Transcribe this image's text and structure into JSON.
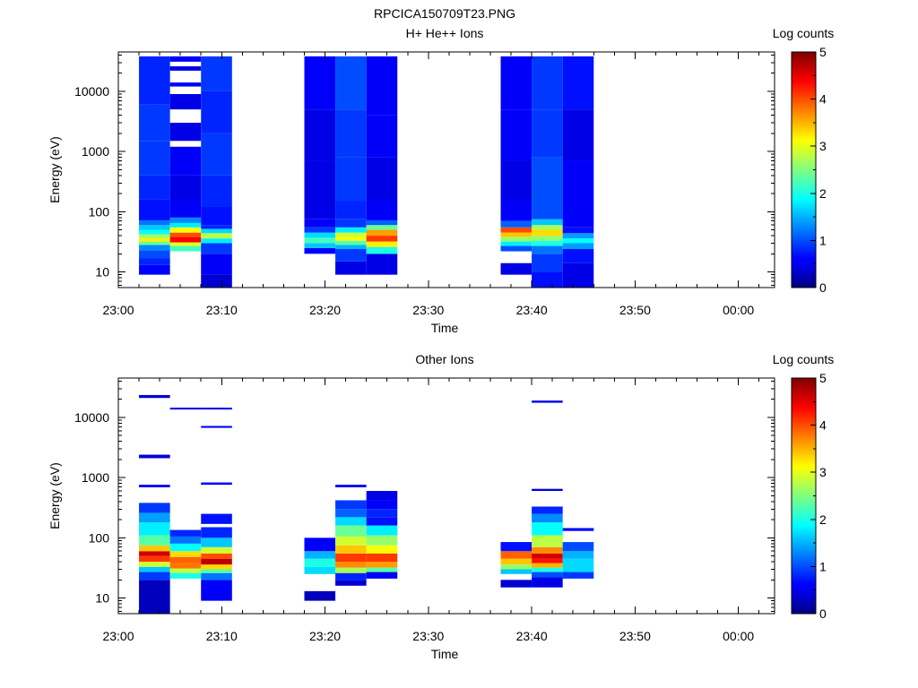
{
  "figure": {
    "title": "RPCICA150709T23.PNG"
  },
  "chart_data": [
    {
      "type": "heatmap",
      "title": "H+ He++ Ions",
      "xlabel": "Time",
      "ylabel": "Energy (eV)",
      "y_scale": "log",
      "ylim": [
        5.5,
        45000
      ],
      "x_tick_labels": [
        "23:00",
        "23:10",
        "23:20",
        "23:30",
        "23:40",
        "23:50",
        "00:00"
      ],
      "y_tick_labels": [
        "10",
        "100",
        "1000",
        "10000"
      ],
      "colorbar": {
        "label": "Log counts",
        "range": [
          0,
          5
        ],
        "tick_labels": [
          "0",
          "1",
          "2",
          "3",
          "4",
          "5"
        ]
      },
      "columns": [
        {
          "start": "23:02",
          "end": "23:05",
          "cells": [
            [
              9,
              13,
              0.6
            ],
            [
              13,
              17,
              0.8
            ],
            [
              17,
              23,
              1.0
            ],
            [
              23,
              28,
              1.3
            ],
            [
              28,
              32,
              2.4
            ],
            [
              32,
              36,
              3.2
            ],
            [
              36,
              42,
              2.7
            ],
            [
              42,
              50,
              1.9
            ],
            [
              50,
              60,
              1.6
            ],
            [
              60,
              72,
              1.2
            ],
            [
              72,
              160,
              0.7
            ],
            [
              160,
              400,
              0.8
            ],
            [
              400,
              1500,
              0.9
            ],
            [
              1500,
              6000,
              0.9
            ],
            [
              6000,
              38000,
              0.8
            ]
          ]
        },
        {
          "start": "23:05",
          "end": "23:08",
          "cells": [
            [
              22,
              27,
              2.2
            ],
            [
              27,
              31,
              3.0
            ],
            [
              31,
              38,
              4.4
            ],
            [
              38,
              45,
              4.0
            ],
            [
              45,
              55,
              3.1
            ],
            [
              55,
              65,
              1.8
            ],
            [
              65,
              80,
              1.3
            ],
            [
              80,
              150,
              0.6
            ],
            [
              150,
              400,
              0.5
            ],
            [
              400,
              1200,
              0.6
            ],
            [
              1500,
              3000,
              0.5
            ],
            [
              5000,
              9000,
              0.5
            ],
            [
              12000,
              14000,
              0.6
            ],
            [
              22000,
              26000,
              0.5
            ],
            [
              31000,
              38000,
              0.6
            ]
          ]
        },
        {
          "start": "23:08",
          "end": "23:11",
          "cells": [
            [
              5.5,
              9,
              0.4
            ],
            [
              9,
              20,
              0.6
            ],
            [
              20,
              30,
              0.9
            ],
            [
              30,
              36,
              1.8
            ],
            [
              36,
              44,
              2.8
            ],
            [
              44,
              52,
              1.7
            ],
            [
              52,
              60,
              0.8
            ],
            [
              60,
              120,
              0.7
            ],
            [
              120,
              400,
              0.8
            ],
            [
              400,
              2000,
              0.9
            ],
            [
              2000,
              10000,
              0.8
            ],
            [
              10000,
              38000,
              0.9
            ]
          ]
        },
        {
          "start": "23:18",
          "end": "23:21",
          "cells": [
            [
              20,
              25,
              0.6
            ],
            [
              25,
              30,
              1.6
            ],
            [
              30,
              37,
              2.2
            ],
            [
              37,
              45,
              1.7
            ],
            [
              45,
              55,
              0.9
            ],
            [
              55,
              75,
              0.6
            ],
            [
              75,
              150,
              0.5
            ],
            [
              150,
              700,
              0.5
            ],
            [
              700,
              5000,
              0.5
            ],
            [
              5000,
              38000,
              0.6
            ]
          ]
        },
        {
          "start": "23:21",
          "end": "23:24",
          "cells": [
            [
              9,
              15,
              0.5
            ],
            [
              15,
              24,
              0.9
            ],
            [
              24,
              28,
              1.5
            ],
            [
              28,
              33,
              2.3
            ],
            [
              33,
              38,
              3.1
            ],
            [
              38,
              45,
              2.9
            ],
            [
              45,
              55,
              1.8
            ],
            [
              55,
              75,
              0.9
            ],
            [
              75,
              150,
              0.8
            ],
            [
              150,
              800,
              0.9
            ],
            [
              800,
              5000,
              0.9
            ],
            [
              5000,
              38000,
              1.0
            ]
          ]
        },
        {
          "start": "23:24",
          "end": "23:27",
          "cells": [
            [
              9,
              20,
              0.5
            ],
            [
              20,
              26,
              2.0
            ],
            [
              26,
              32,
              3.2
            ],
            [
              32,
              40,
              4.1
            ],
            [
              40,
              50,
              3.6
            ],
            [
              50,
              60,
              2.4
            ],
            [
              60,
              72,
              1.1
            ],
            [
              72,
              150,
              0.6
            ],
            [
              150,
              800,
              0.5
            ],
            [
              800,
              4000,
              0.6
            ],
            [
              4000,
              38000,
              0.6
            ]
          ]
        },
        {
          "start": "23:37",
          "end": "23:40",
          "cells": [
            [
              9,
              14,
              0.5
            ],
            [
              22,
              27,
              1.0
            ],
            [
              27,
              32,
              1.8
            ],
            [
              32,
              38,
              2.6
            ],
            [
              38,
              45,
              3.4
            ],
            [
              45,
              55,
              4.0
            ],
            [
              55,
              70,
              1.1
            ],
            [
              70,
              150,
              0.6
            ],
            [
              150,
              700,
              0.5
            ],
            [
              700,
              5000,
              0.6
            ],
            [
              5000,
              38000,
              0.6
            ]
          ]
        },
        {
          "start": "23:40",
          "end": "23:43",
          "cells": [
            [
              5.5,
              10,
              0.7
            ],
            [
              10,
              20,
              0.9
            ],
            [
              20,
              27,
              1.2
            ],
            [
              27,
              33,
              2.0
            ],
            [
              33,
              40,
              2.6
            ],
            [
              40,
              50,
              3.3
            ],
            [
              50,
              60,
              2.7
            ],
            [
              60,
              75,
              1.6
            ],
            [
              75,
              150,
              1.0
            ],
            [
              150,
              800,
              1.0
            ],
            [
              800,
              5000,
              0.9
            ],
            [
              5000,
              38000,
              0.9
            ]
          ]
        },
        {
          "start": "23:43",
          "end": "23:46",
          "cells": [
            [
              5.5,
              14,
              0.5
            ],
            [
              14,
              24,
              0.7
            ],
            [
              24,
              30,
              1.4
            ],
            [
              30,
              36,
              1.9
            ],
            [
              36,
              44,
              1.4
            ],
            [
              44,
              55,
              0.7
            ],
            [
              55,
              120,
              0.6
            ],
            [
              120,
              700,
              0.6
            ],
            [
              700,
              5000,
              0.5
            ],
            [
              5000,
              38000,
              0.7
            ]
          ]
        }
      ]
    },
    {
      "type": "heatmap",
      "title": "Other Ions",
      "xlabel": "Time",
      "ylabel": "Energy (eV)",
      "y_scale": "log",
      "ylim": [
        5.5,
        45000
      ],
      "x_tick_labels": [
        "23:00",
        "23:10",
        "23:20",
        "23:30",
        "23:40",
        "23:50",
        "00:00"
      ],
      "y_tick_labels": [
        "10",
        "100",
        "1000",
        "10000"
      ],
      "colorbar": {
        "label": "Log counts",
        "range": [
          0,
          5
        ],
        "tick_labels": [
          "0",
          "1",
          "2",
          "3",
          "4",
          "5"
        ]
      },
      "columns": [
        {
          "start": "23:02",
          "end": "23:05",
          "cells": [
            [
              5.5,
              20,
              0.3
            ],
            [
              20,
              27,
              0.9
            ],
            [
              27,
              33,
              1.6
            ],
            [
              33,
              40,
              2.9
            ],
            [
              40,
              50,
              4.1
            ],
            [
              50,
              60,
              4.6
            ],
            [
              60,
              75,
              3.4
            ],
            [
              75,
              110,
              2.3
            ],
            [
              110,
              180,
              1.8
            ],
            [
              180,
              260,
              1.4
            ],
            [
              260,
              380,
              0.9
            ],
            [
              690,
              760,
              0.6
            ],
            [
              2100,
              2400,
              0.4
            ],
            [
              21000,
              23500,
              0.4
            ]
          ]
        },
        {
          "start": "23:05",
          "end": "23:08",
          "cells": [
            [
              21,
              26,
              2.0
            ],
            [
              26,
              31,
              2.8
            ],
            [
              31,
              38,
              3.8
            ],
            [
              38,
              48,
              3.9
            ],
            [
              48,
              60,
              3.3
            ],
            [
              60,
              80,
              1.9
            ],
            [
              80,
              105,
              1.2
            ],
            [
              105,
              135,
              0.8
            ],
            [
              13500,
              14500,
              0.5
            ]
          ]
        },
        {
          "start": "23:08",
          "end": "23:11",
          "cells": [
            [
              9,
              20,
              0.6
            ],
            [
              20,
              26,
              1.2
            ],
            [
              26,
              30,
              2.3
            ],
            [
              30,
              36,
              3.3
            ],
            [
              36,
              45,
              4.7
            ],
            [
              45,
              55,
              4.0
            ],
            [
              55,
              70,
              2.9
            ],
            [
              70,
              100,
              1.6
            ],
            [
              100,
              150,
              0.8
            ],
            [
              170,
              250,
              0.7
            ],
            [
              760,
              830,
              0.6
            ],
            [
              6700,
              7200,
              0.6
            ],
            [
              13500,
              14500,
              0.5
            ]
          ]
        },
        {
          "start": "23:18",
          "end": "23:21",
          "cells": [
            [
              9,
              13,
              0.3
            ],
            [
              25,
              33,
              1.7
            ],
            [
              33,
              45,
              2.0
            ],
            [
              45,
              60,
              1.5
            ],
            [
              60,
              100,
              0.6
            ]
          ]
        },
        {
          "start": "23:21",
          "end": "23:24",
          "cells": [
            [
              16,
              20,
              0.4
            ],
            [
              20,
              26,
              0.8
            ],
            [
              26,
              32,
              2.7
            ],
            [
              32,
              40,
              3.7
            ],
            [
              40,
              55,
              4.1
            ],
            [
              55,
              75,
              3.4
            ],
            [
              75,
              105,
              2.9
            ],
            [
              105,
              160,
              2.4
            ],
            [
              160,
              220,
              1.7
            ],
            [
              220,
              300,
              1.1
            ],
            [
              300,
              420,
              0.9
            ],
            [
              690,
              760,
              0.6
            ]
          ]
        },
        {
          "start": "23:24",
          "end": "23:27",
          "cells": [
            [
              21,
              27,
              0.6
            ],
            [
              27,
              32,
              2.3
            ],
            [
              32,
              40,
              3.6
            ],
            [
              40,
              55,
              4.1
            ],
            [
              55,
              75,
              3.1
            ],
            [
              75,
              110,
              2.6
            ],
            [
              110,
              160,
              1.8
            ],
            [
              160,
              220,
              0.7
            ],
            [
              220,
              300,
              0.8
            ],
            [
              300,
              420,
              0.6
            ],
            [
              420,
              600,
              0.5
            ]
          ]
        },
        {
          "start": "23:37",
          "end": "23:40",
          "cells": [
            [
              15,
              20,
              0.4
            ],
            [
              25,
              30,
              1.6
            ],
            [
              30,
              36,
              2.6
            ],
            [
              36,
              45,
              3.4
            ],
            [
              45,
              60,
              3.9
            ],
            [
              60,
              85,
              0.7
            ]
          ]
        },
        {
          "start": "23:40",
          "end": "23:43",
          "cells": [
            [
              15,
              22,
              0.5
            ],
            [
              22,
              27,
              1.0
            ],
            [
              27,
              32,
              2.0
            ],
            [
              32,
              38,
              3.5
            ],
            [
              38,
              45,
              4.3
            ],
            [
              45,
              55,
              4.6
            ],
            [
              55,
              70,
              3.7
            ],
            [
              70,
              110,
              2.8
            ],
            [
              110,
              180,
              1.9
            ],
            [
              180,
              250,
              1.3
            ],
            [
              250,
              330,
              0.8
            ],
            [
              600,
              650,
              0.5
            ],
            [
              17500,
              19000,
              0.5
            ]
          ]
        },
        {
          "start": "23:43",
          "end": "23:46",
          "cells": [
            [
              21,
              27,
              0.9
            ],
            [
              27,
              45,
              1.7
            ],
            [
              45,
              60,
              1.5
            ],
            [
              60,
              85,
              1.0
            ],
            [
              130,
              145,
              0.6
            ]
          ]
        }
      ]
    }
  ]
}
